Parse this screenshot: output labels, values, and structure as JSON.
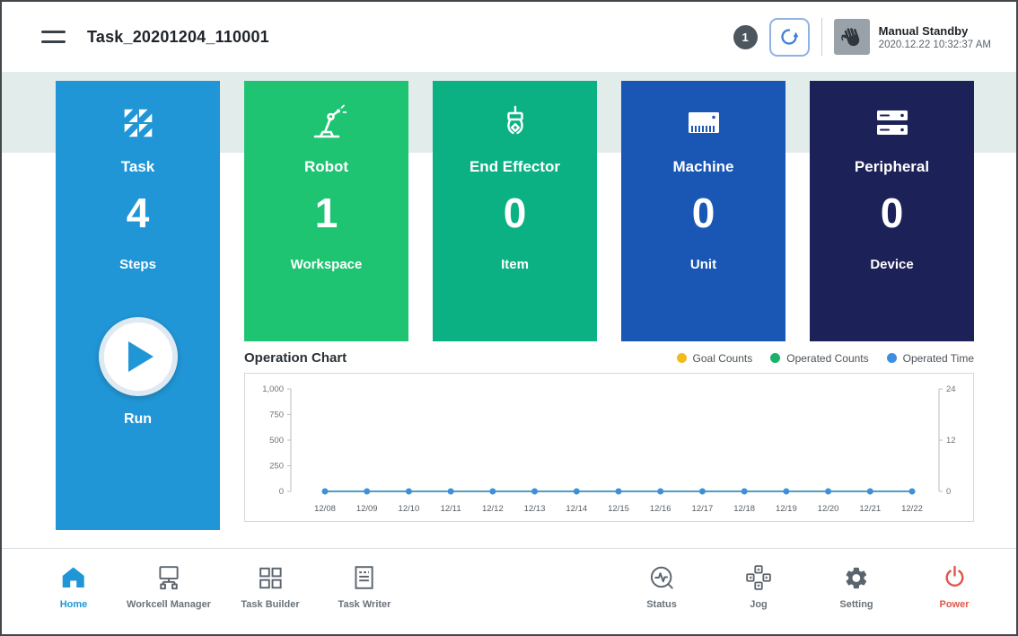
{
  "header": {
    "title": "Task_20201204_110001",
    "badge_count": "1",
    "refresh_icon": "reset-rotation-icon",
    "mode_icon": "manual-hand-icon",
    "mode_label": "Manual Standby",
    "timestamp": "2020.12.22 10:32:37 AM"
  },
  "cards": [
    {
      "id": "task",
      "icon": "task-grid-icon",
      "label": "Task",
      "value": "4",
      "sublabel": "Steps",
      "run_label": "Run",
      "color": "#2196d6"
    },
    {
      "id": "robot",
      "icon": "robot-arm-icon",
      "label": "Robot",
      "value": "1",
      "sublabel": "Workspace",
      "color": "#1fc473"
    },
    {
      "id": "end_effector",
      "icon": "gripper-icon",
      "label": "End Effector",
      "value": "0",
      "sublabel": "Item",
      "color": "#0bb183"
    },
    {
      "id": "machine",
      "icon": "machine-icon",
      "label": "Machine",
      "value": "0",
      "sublabel": "Unit",
      "color": "#1a57b5"
    },
    {
      "id": "peripheral",
      "icon": "server-icon",
      "label": "Peripheral",
      "value": "0",
      "sublabel": "Device",
      "color": "#1c2157"
    }
  ],
  "chart": {
    "title": "Operation Chart",
    "legend": [
      {
        "label": "Goal Counts",
        "color": "#f2bb1d"
      },
      {
        "label": "Operated Counts",
        "color": "#18b36b"
      },
      {
        "label": "Operated Time",
        "color": "#3d8fe0"
      }
    ],
    "chart_data": {
      "type": "line",
      "x": [
        "12/08",
        "12/09",
        "12/10",
        "12/11",
        "12/12",
        "12/13",
        "12/14",
        "12/15",
        "12/16",
        "12/17",
        "12/18",
        "12/19",
        "12/20",
        "12/21",
        "12/22"
      ],
      "series": [
        {
          "name": "Goal Counts",
          "axis": "left",
          "color": "#f2bb1d",
          "values": [
            0,
            0,
            0,
            0,
            0,
            0,
            0,
            0,
            0,
            0,
            0,
            0,
            0,
            0,
            0
          ]
        },
        {
          "name": "Operated Counts",
          "axis": "left",
          "color": "#18b36b",
          "values": [
            0,
            0,
            0,
            0,
            0,
            0,
            0,
            0,
            0,
            0,
            0,
            0,
            0,
            0,
            0
          ]
        },
        {
          "name": "Operated Time",
          "axis": "right",
          "color": "#3d8fe0",
          "values": [
            0,
            0,
            0,
            0,
            0,
            0,
            0,
            0,
            0,
            0,
            0,
            0,
            0,
            0,
            0
          ]
        }
      ],
      "left_axis": {
        "ticks": [
          "1,000",
          "750",
          "500",
          "250",
          "0"
        ],
        "range": [
          0,
          1000
        ]
      },
      "right_axis": {
        "ticks": [
          "24",
          "12",
          "0"
        ],
        "range": [
          0,
          24
        ]
      },
      "grid": false,
      "legend_position": "top-right"
    }
  },
  "nav": {
    "items": [
      {
        "id": "home",
        "icon": "home-icon",
        "label": "Home",
        "active": true
      },
      {
        "id": "workcell_manager",
        "icon": "workcell-manager-icon",
        "label": "Workcell Manager",
        "active": false
      },
      {
        "id": "task_builder",
        "icon": "task-builder-icon",
        "label": "Task Builder",
        "active": false
      },
      {
        "id": "task_writer",
        "icon": "task-writer-icon",
        "label": "Task Writer",
        "active": false
      },
      {
        "id": "status",
        "icon": "status-monitor-icon",
        "label": "Status",
        "active": false
      },
      {
        "id": "jog",
        "icon": "jog-pad-icon",
        "label": "Jog",
        "active": false
      },
      {
        "id": "setting",
        "icon": "gear-icon",
        "label": "Setting",
        "active": false
      },
      {
        "id": "power",
        "icon": "power-icon",
        "label": "Power",
        "active": false
      }
    ]
  }
}
